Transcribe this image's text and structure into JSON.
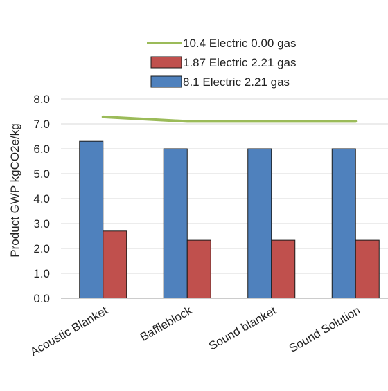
{
  "chart_data": {
    "type": "bar",
    "categories": [
      "Acoustic Blanket",
      "Baffleblock",
      "Sound blanket",
      "Sound Solution"
    ],
    "series": [
      {
        "name": "8.1 Electric 2.21 gas",
        "type": "bar",
        "color": "#4f81bd",
        "values": [
          6.3,
          6.0,
          6.0,
          6.0
        ]
      },
      {
        "name": "1.87 Electric  2.21 gas",
        "type": "bar",
        "color": "#c0504d",
        "values": [
          2.7,
          2.33,
          2.33,
          2.33
        ]
      },
      {
        "name": "10.4 Electric 0.00 gas",
        "type": "line",
        "color": "#9bbb59",
        "values": [
          7.28,
          7.1,
          7.1,
          7.1
        ]
      }
    ],
    "ylabel": "Product  GWP kgCO2e/kg",
    "xlabel": "",
    "ylim": [
      0,
      8
    ],
    "yticks": [
      "0.0",
      "1.0",
      "2.0",
      "3.0",
      "4.0",
      "5.0",
      "6.0",
      "7.0",
      "8.0"
    ],
    "grid": true,
    "legend_position": "top-center"
  }
}
